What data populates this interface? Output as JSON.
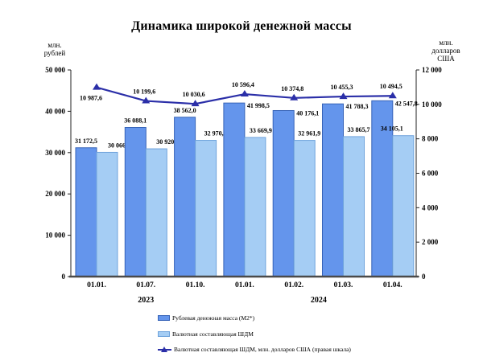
{
  "chart_data": {
    "type": "bar",
    "title": "Динамика широкой денежной массы",
    "grid": false,
    "legend_position": "bottom-left",
    "left_axis": {
      "label": "млн.\nрублей",
      "min": 0,
      "max": 50000,
      "step": 10000,
      "tick_labels": [
        "0",
        "10 000",
        "20 000",
        "30 000",
        "40 000",
        "50 000"
      ]
    },
    "right_axis": {
      "label": "млн.\nдолларов\nСША",
      "min": 0,
      "max": 12000,
      "step": 2000,
      "tick_labels": [
        "0",
        "2 000",
        "4 000",
        "6 000",
        "8 000",
        "10 000",
        "12 000"
      ]
    },
    "categories": [
      "01.01.",
      "01.07.",
      "01.10.",
      "01.01.",
      "01.02.",
      "01.03.",
      "01.04."
    ],
    "year_groups": [
      {
        "label": "2023",
        "from": 0,
        "to": 2
      },
      {
        "label": "2024",
        "from": 3,
        "to": 6
      }
    ],
    "series": [
      {
        "name": "Рублевая денежная масса (М2*)",
        "type": "bar",
        "axis": "left",
        "color": "#6495EC",
        "border": "#3663B8",
        "values": [
          31172.5,
          36088.1,
          38562.0,
          41998.5,
          40176.1,
          41788.3,
          42547.8
        ],
        "labels": [
          "31 172,5",
          "36 088,1",
          "38 562,0",
          "41 998,5",
          "40 176,1",
          "41 788,3",
          "42 547,8"
        ]
      },
      {
        "name": "Валютная составляющая ШДМ",
        "type": "bar",
        "axis": "left",
        "color": "#A5CDF4",
        "border": "#6FA3DC",
        "values": [
          30066.5,
          30920.2,
          32970.6,
          33669.9,
          32961.9,
          33865.7,
          34105.1
        ],
        "labels": [
          "30 066,5",
          "30 920,2",
          "32 970,6",
          "33 669,9",
          "32 961,9",
          "33 865,7",
          "34 105,1"
        ]
      },
      {
        "name": "Валютная составляющая ШДМ, млн. долларов США (правая шкала)",
        "type": "line",
        "axis": "right",
        "color": "#2B2FA8",
        "values": [
          10987.6,
          10199.6,
          10030.6,
          10596.4,
          10374.8,
          10455.3,
          10494.5
        ],
        "labels": [
          "10 987,6",
          "10 199,6",
          "10 030,6",
          "10 596,4",
          "10 374,8",
          "10 455,3",
          "10 494,5"
        ]
      }
    ]
  }
}
